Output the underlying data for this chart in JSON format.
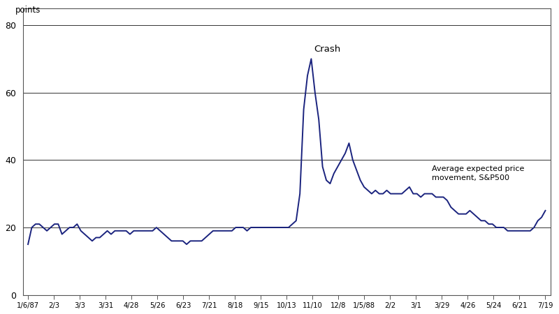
{
  "x_tick_labels": [
    "1/6/87",
    "2/3",
    "3/3",
    "3/31",
    "4/28",
    "5/26",
    "6/23",
    "7/21",
    "8/18",
    "9/15",
    "10/13",
    "11/10",
    "12/8",
    "1/5/88",
    "2/2",
    "3/1",
    "3/29",
    "4/26",
    "5/24",
    "6/21",
    "7/19"
  ],
  "y_values": [
    15,
    20,
    21,
    21,
    20,
    19,
    20,
    21,
    21,
    18,
    19,
    20,
    20,
    21,
    19,
    18,
    17,
    16,
    17,
    17,
    18,
    19,
    18,
    19,
    19,
    19,
    19,
    18,
    19,
    19,
    19,
    19,
    19,
    19,
    20,
    19,
    18,
    17,
    16,
    16,
    16,
    16,
    15,
    16,
    16,
    16,
    16,
    17,
    18,
    19,
    19,
    19,
    19,
    19,
    19,
    20,
    20,
    20,
    19,
    20,
    20,
    20,
    20,
    20,
    20,
    20,
    20,
    20,
    20,
    20,
    21,
    22,
    30,
    55,
    65,
    70,
    60,
    52,
    38,
    34,
    33,
    36,
    38,
    40,
    42,
    45,
    40,
    37,
    34,
    32,
    31,
    30,
    31,
    30,
    30,
    31,
    30,
    30,
    30,
    30,
    31,
    32,
    30,
    30,
    29,
    30,
    30,
    30,
    29,
    29,
    29,
    28,
    26,
    25,
    24,
    24,
    24,
    25,
    24,
    23,
    22,
    22,
    21,
    21,
    20,
    20,
    20,
    19,
    19,
    19,
    19,
    19,
    19,
    19,
    20,
    22,
    23,
    25
  ],
  "ylim": [
    0,
    85
  ],
  "yticks": [
    0,
    20,
    40,
    60,
    80
  ],
  "ylabel": "points",
  "line_color": "#1a237e",
  "annotation_text": "Crash",
  "label_text": "Average expected price\nmovement, S&P500",
  "bg_color": "#ffffff",
  "grid_color": "#333333",
  "border_color": "#555555"
}
